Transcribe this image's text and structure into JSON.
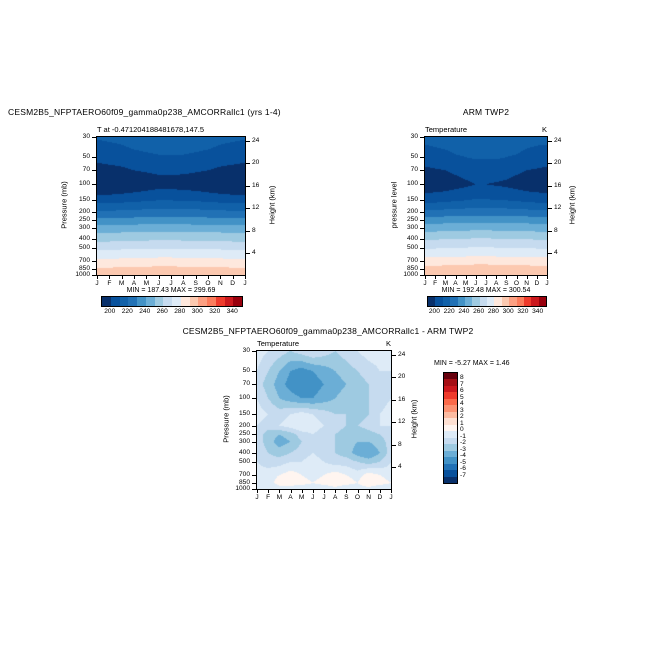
{
  "palettes": {
    "temp": {
      "boundaries": [
        200,
        210,
        220,
        230,
        240,
        250,
        260,
        270,
        280,
        290,
        300,
        310,
        320,
        330,
        340
      ],
      "colors": [
        "#08306b",
        "#08519c",
        "#1161a9",
        "#2171b5",
        "#4292c6",
        "#6baed6",
        "#9ecae1",
        "#c6dbef",
        "#deebf7",
        "#fee8dd",
        "#fcc9b0",
        "#fca082",
        "#fb7c5c",
        "#ef3b2c",
        "#cb181d",
        "#99000d"
      ],
      "labels": [
        200,
        220,
        240,
        260,
        280,
        300,
        320,
        340
      ]
    },
    "diff": {
      "boundaries": [
        -7,
        -6,
        -5,
        -4,
        -3,
        -2,
        -1,
        0,
        1,
        2,
        3,
        4,
        5,
        6,
        7,
        8
      ],
      "colors": [
        "#08306b",
        "#08519c",
        "#2171b5",
        "#4292c6",
        "#6baed6",
        "#9ecae1",
        "#c6dbef",
        "#deebf7",
        "#fff5f0",
        "#fee0d2",
        "#fcbba1",
        "#fc9272",
        "#fb6a4a",
        "#ef3b2c",
        "#cb181d",
        "#a50f15",
        "#67000d"
      ],
      "labels": [
        8,
        7,
        6,
        5,
        4,
        3,
        2,
        1,
        0,
        -1,
        -2,
        -3,
        -4,
        -5,
        -6,
        -7
      ]
    }
  },
  "chart_data": [
    {
      "type": "contour",
      "title": "CESM2B5_NFPTAERO60f09_gamma0p238_AMCORRallc1 (yrs 1-4)",
      "subtitle": "T at -0.471204188481678,147.5",
      "units": "",
      "ylabel": "Pressure (mb)",
      "ylabel_right": "Height (km)",
      "stats": "MIN = 187.43 MAX = 299.69",
      "palette": "temp",
      "x_months": [
        "J",
        "F",
        "M",
        "A",
        "M",
        "J",
        "J",
        "A",
        "S",
        "O",
        "N",
        "D",
        "J"
      ],
      "y_pressure_mb": [
        30,
        50,
        70,
        100,
        150,
        200,
        250,
        300,
        400,
        500,
        700,
        850,
        1000
      ],
      "height_km_ticks": [
        24,
        20,
        16,
        12,
        8,
        4
      ],
      "values": [
        [
          211,
          212,
          213,
          215,
          216,
          217,
          218,
          217,
          216,
          215,
          213,
          212,
          211
        ],
        [
          203,
          204,
          205,
          207,
          208,
          209,
          209,
          209,
          208,
          207,
          205,
          204,
          203
        ],
        [
          196,
          197,
          198,
          200,
          201,
          202,
          202,
          202,
          201,
          200,
          198,
          197,
          196
        ],
        [
          188,
          189,
          190,
          192,
          194,
          196,
          196,
          195,
          194,
          192,
          190,
          189,
          188
        ],
        [
          206,
          206,
          207,
          208,
          209,
          210,
          210,
          209,
          209,
          208,
          207,
          206,
          206
        ],
        [
          221,
          221,
          222,
          222,
          223,
          223,
          223,
          223,
          223,
          222,
          222,
          221,
          221
        ],
        [
          233,
          233,
          234,
          234,
          235,
          235,
          235,
          235,
          234,
          234,
          234,
          233,
          233
        ],
        [
          243,
          243,
          244,
          244,
          245,
          245,
          245,
          245,
          244,
          244,
          244,
          243,
          243
        ],
        [
          257,
          257,
          258,
          258,
          258,
          259,
          259,
          258,
          258,
          258,
          258,
          257,
          257
        ],
        [
          267,
          267,
          268,
          268,
          268,
          269,
          269,
          268,
          268,
          268,
          268,
          267,
          267
        ],
        [
          282,
          282,
          283,
          283,
          283,
          284,
          284,
          283,
          283,
          283,
          283,
          282,
          282
        ],
        [
          291,
          291,
          292,
          292,
          292,
          293,
          293,
          292,
          292,
          292,
          292,
          291,
          291
        ],
        [
          298,
          298,
          299,
          299,
          300,
          300,
          299,
          299,
          299,
          299,
          298,
          298,
          298
        ]
      ]
    },
    {
      "type": "contour",
      "title": "ARM TWP2",
      "subtitle": "Temperature",
      "units": "K",
      "ylabel": "pressure level",
      "ylabel_right": "Height (km)",
      "stats": "MIN = 192.48 MAX = 300.54",
      "palette": "temp",
      "x_months": [
        "J",
        "F",
        "M",
        "A",
        "M",
        "J",
        "J",
        "A",
        "S",
        "O",
        "N",
        "D",
        "J"
      ],
      "y_pressure_mb": [
        30,
        50,
        70,
        100,
        150,
        200,
        250,
        300,
        400,
        500,
        700,
        850,
        1000
      ],
      "height_km_ticks": [
        24,
        20,
        16,
        12,
        8,
        4
      ],
      "values": [
        [
          213,
          214,
          215,
          216,
          217,
          218,
          218,
          218,
          217,
          216,
          214,
          213,
          213
        ],
        [
          205,
          206,
          207,
          209,
          210,
          211,
          211,
          211,
          210,
          209,
          207,
          206,
          205
        ],
        [
          198,
          199,
          200,
          202,
          204,
          205,
          205,
          205,
          204,
          202,
          200,
          199,
          198
        ],
        [
          192,
          193,
          194,
          196,
          198,
          200,
          200,
          199,
          198,
          196,
          194,
          193,
          192
        ],
        [
          207,
          207,
          208,
          209,
          210,
          211,
          211,
          210,
          210,
          209,
          208,
          207,
          207
        ],
        [
          222,
          222,
          223,
          223,
          224,
          224,
          224,
          224,
          224,
          223,
          223,
          222,
          222
        ],
        [
          235,
          235,
          236,
          236,
          236,
          237,
          237,
          236,
          236,
          236,
          236,
          235,
          235
        ],
        [
          245,
          245,
          246,
          246,
          246,
          247,
          247,
          246,
          246,
          246,
          246,
          245,
          245
        ],
        [
          259,
          259,
          260,
          260,
          260,
          261,
          261,
          260,
          260,
          260,
          260,
          259,
          259
        ],
        [
          269,
          269,
          270,
          270,
          270,
          271,
          271,
          270,
          270,
          270,
          270,
          269,
          269
        ],
        [
          284,
          284,
          285,
          285,
          285,
          286,
          286,
          285,
          285,
          285,
          285,
          284,
          284
        ],
        [
          293,
          293,
          294,
          294,
          294,
          295,
          295,
          294,
          294,
          294,
          294,
          293,
          293
        ],
        [
          299,
          299,
          300,
          300,
          300,
          300,
          300,
          300,
          300,
          300,
          299,
          299,
          299
        ]
      ]
    },
    {
      "type": "contour",
      "title": "CESM2B5_NFPTAERO60f09_gamma0p238_AMCORRallc1 - ARM TWP2",
      "subtitle": "Temperature",
      "units": "K",
      "ylabel": "Pressure (mb)",
      "ylabel_right": "Height (km)",
      "stats": "MIN = -5.27 MAX =  1.46",
      "palette": "diff",
      "x_months": [
        "J",
        "F",
        "M",
        "A",
        "M",
        "J",
        "J",
        "A",
        "S",
        "O",
        "N",
        "D",
        "J"
      ],
      "y_pressure_mb": [
        30,
        50,
        70,
        100,
        150,
        200,
        250,
        300,
        400,
        500,
        700,
        850,
        1000
      ],
      "height_km_ticks": [
        24,
        20,
        16,
        12,
        8,
        4
      ],
      "values": [
        [
          -0.5,
          -1,
          -1.5,
          -2,
          -1.5,
          -1,
          -1.5,
          -2,
          -1.5,
          -1,
          -0.5,
          -0.5,
          -0.5
        ],
        [
          -1,
          -2,
          -3,
          -4,
          -4.5,
          -4,
          -3.5,
          -3,
          -2.5,
          -2,
          -1.5,
          -1,
          -1
        ],
        [
          -1.5,
          -2.5,
          -3.5,
          -4.5,
          -5,
          -4.5,
          -4,
          -3.5,
          -3,
          -2.5,
          -2,
          -1.5,
          -1.5
        ],
        [
          -1,
          -2,
          -3,
          -3.5,
          -4,
          -4,
          -3.5,
          -3,
          -2.5,
          -3,
          -2,
          -1.5,
          -1
        ],
        [
          -0.5,
          -1,
          -1.5,
          -1,
          -0.5,
          -1,
          -1.5,
          -2,
          -2,
          -2.5,
          -2,
          -1,
          -0.5
        ],
        [
          -1,
          -1.5,
          -1,
          -0.5,
          0,
          -0.5,
          -1,
          -1.5,
          -2,
          -2,
          -1.5,
          -1,
          -1
        ],
        [
          -1.5,
          -2.5,
          -3,
          -2.5,
          -1.5,
          -1,
          -1.5,
          -2,
          -2.5,
          -3,
          -2.5,
          -2,
          -1.5
        ],
        [
          -1.5,
          -2.5,
          -3.5,
          -3,
          -2,
          -1.5,
          -1.5,
          -2,
          -2.5,
          -3,
          -3,
          -2.5,
          -1.5
        ],
        [
          -1,
          -2,
          -2.5,
          -2,
          -1.5,
          -1,
          -1.5,
          -2,
          -2.5,
          -3.5,
          -4,
          -3,
          -1.5
        ],
        [
          -1,
          -1.5,
          -1.5,
          -1,
          -1,
          -0.5,
          -1,
          -1.5,
          -1.5,
          -2,
          -2.5,
          -2,
          -1
        ],
        [
          -0.5,
          -0.5,
          0,
          0.5,
          0,
          -0.5,
          0,
          0.5,
          0,
          -0.5,
          0.5,
          0,
          -0.5
        ],
        [
          0,
          -0.5,
          0.5,
          1,
          0.5,
          0,
          0.5,
          1,
          0.5,
          0,
          1,
          0.5,
          0
        ],
        [
          -0.5,
          -1,
          -0.5,
          -1,
          -1,
          -0.5,
          -1,
          -0.5,
          -1,
          -0.5,
          -0.5,
          -1,
          -0.5
        ]
      ]
    }
  ]
}
